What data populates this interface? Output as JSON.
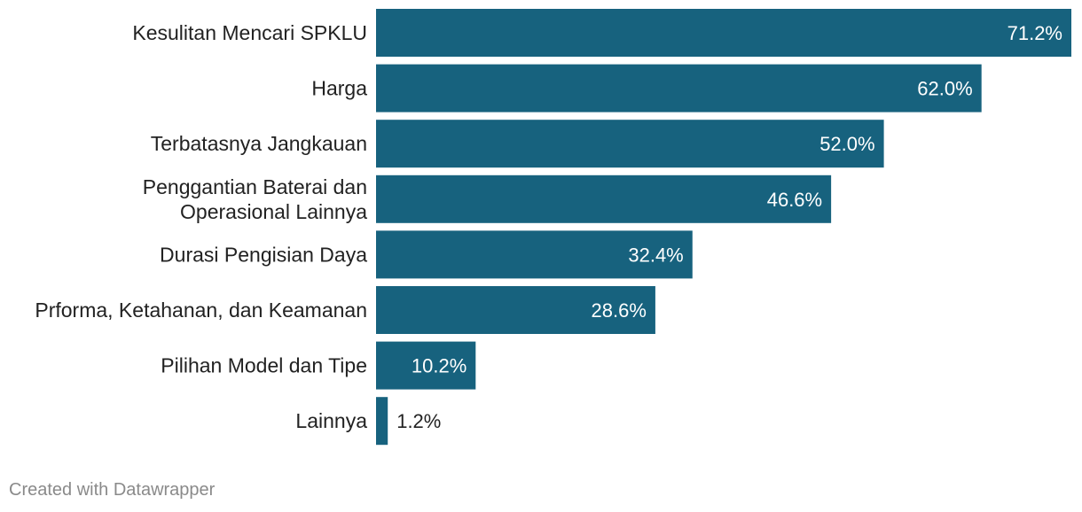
{
  "chart_data": {
    "type": "bar",
    "orientation": "horizontal",
    "title": "",
    "xlabel": "",
    "ylabel": "",
    "categories": [
      "Kesulitan Mencari SPKLU",
      "Harga",
      "Terbatasnya Jangkauan",
      "Penggantian Baterai dan Operasional Lainnya",
      "Durasi Pengisian Daya",
      "Prforma, Ketahanan, dan Keamanan",
      "Pilihan Model dan Tipe",
      "Lainnya"
    ],
    "values": [
      71.2,
      62.0,
      52.0,
      46.6,
      32.4,
      28.6,
      10.2,
      1.2
    ],
    "value_labels": [
      "71.2%",
      "62.0%",
      "52.0%",
      "46.6%",
      "32.4%",
      "28.6%",
      "10.2%",
      "1.2%"
    ],
    "xlim": [
      0,
      71.2
    ],
    "grid": false,
    "legend": "none",
    "bar_color": "#17627e",
    "label_inside_color": "#ffffff",
    "label_outside_color": "#222222"
  },
  "footer": {
    "credit": "Created with Datawrapper"
  }
}
